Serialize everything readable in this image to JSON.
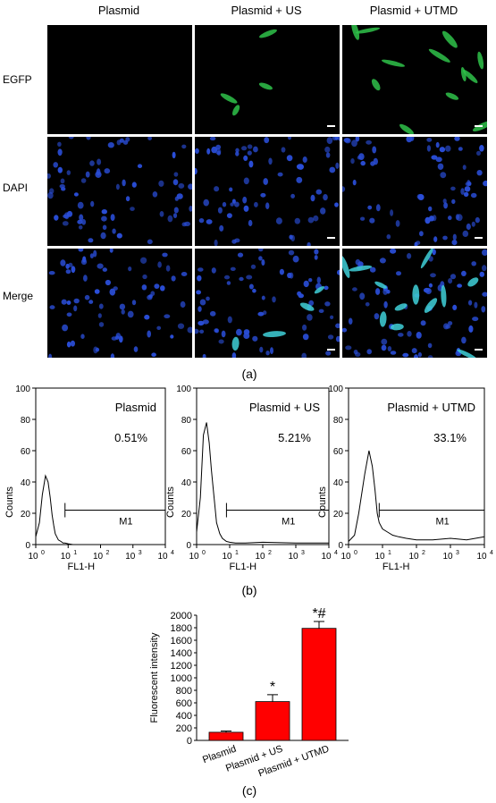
{
  "panel_a": {
    "columns": [
      "Plasmid",
      "Plasmid + US",
      "Plasmid + UTMD"
    ],
    "rows": [
      "EGFP",
      "DAPI",
      "Merge"
    ],
    "caption": "(a)",
    "colors": {
      "egfp": "#2fc24a",
      "dapi": "#2a4ed8",
      "merge": "#3fd0d8"
    }
  },
  "panel_b": {
    "caption": "(b)",
    "chart_data": [
      {
        "type": "line",
        "title": "Plasmid",
        "percent": "0.51%",
        "gate": "M1",
        "xlabel": "FL1-H",
        "ylabel": "Counts",
        "xscale": "log",
        "xlim": [
          1,
          10000
        ],
        "ylim": [
          0,
          100
        ],
        "yticks": [
          "0",
          "20",
          "40",
          "60",
          "80",
          "100"
        ],
        "xticks": [
          "10",
          "10",
          "10",
          "10",
          "10"
        ],
        "xtick_exps": [
          "0",
          "1",
          "2",
          "3",
          "4"
        ],
        "peak": 43,
        "gate_range": [
          8,
          10000
        ],
        "x": [
          1,
          1.3,
          1.6,
          2,
          2.4,
          2.8,
          3.2,
          3.6,
          4,
          5,
          6,
          7,
          8,
          10,
          14,
          20,
          40,
          80
        ],
        "y": [
          5,
          14,
          32,
          44,
          40,
          30,
          19,
          12,
          7,
          3,
          2,
          1,
          1,
          0.5,
          0,
          0,
          0,
          0
        ]
      },
      {
        "type": "line",
        "title": "Plasmid + US",
        "percent": "5.21%",
        "gate": "M1",
        "xlabel": "FL1-H",
        "ylabel": "Counts",
        "xscale": "log",
        "xlim": [
          1,
          10000
        ],
        "ylim": [
          0,
          100
        ],
        "yticks": [
          "0",
          "20",
          "40",
          "60",
          "80",
          "100"
        ],
        "xticks": [
          "10",
          "10",
          "10",
          "10",
          "10"
        ],
        "xtick_exps": [
          "0",
          "1",
          "2",
          "3",
          "4"
        ],
        "peak": 78,
        "gate_range": [
          8,
          10000
        ],
        "x": [
          1,
          1.3,
          1.6,
          2,
          2.4,
          2.8,
          3.2,
          3.6,
          4,
          5,
          6,
          8,
          10,
          15,
          30,
          100,
          1000,
          10000
        ],
        "y": [
          8,
          30,
          70,
          78,
          65,
          48,
          35,
          24,
          14,
          7,
          4,
          2,
          1.5,
          1,
          1,
          1.5,
          1,
          1
        ]
      },
      {
        "type": "line",
        "title": "Plasmid + UTMD",
        "percent": "33.1%",
        "gate": "M1",
        "xlabel": "FL1-H",
        "ylabel": "Counts",
        "xscale": "log",
        "xlim": [
          1,
          10000
        ],
        "ylim": [
          0,
          100
        ],
        "yticks": [
          "0",
          "20",
          "40",
          "60",
          "80",
          "100"
        ],
        "xticks": [
          "10",
          "10",
          "10",
          "10",
          "10"
        ],
        "xtick_exps": [
          "0",
          "1",
          "2",
          "3",
          "4"
        ],
        "peak": 60,
        "gate_range": [
          8,
          10000
        ],
        "x": [
          1,
          1.5,
          2,
          3,
          4,
          5,
          6,
          7,
          8,
          10,
          14,
          20,
          30,
          50,
          100,
          300,
          1000,
          3000,
          10000
        ],
        "y": [
          2,
          6,
          20,
          45,
          60,
          50,
          35,
          20,
          14,
          10,
          8,
          6,
          5,
          4,
          3,
          3,
          4,
          3,
          5
        ]
      }
    ]
  },
  "panel_c": {
    "caption": "(c)",
    "chart_data": {
      "type": "bar",
      "categories": [
        "Plasmid",
        "Plasmid + US",
        "Plasmid + UTMD"
      ],
      "values": [
        130,
        620,
        1790
      ],
      "errors": [
        20,
        110,
        110
      ],
      "annotations": [
        "",
        "*",
        "*#"
      ],
      "ylabel": "Fluorescent intensity",
      "ylim": [
        0,
        2000
      ],
      "yticks": [
        "0",
        "200",
        "400",
        "600",
        "800",
        "1000",
        "1200",
        "1400",
        "1600",
        "1800",
        "2000"
      ],
      "color": "#ff0000"
    }
  }
}
